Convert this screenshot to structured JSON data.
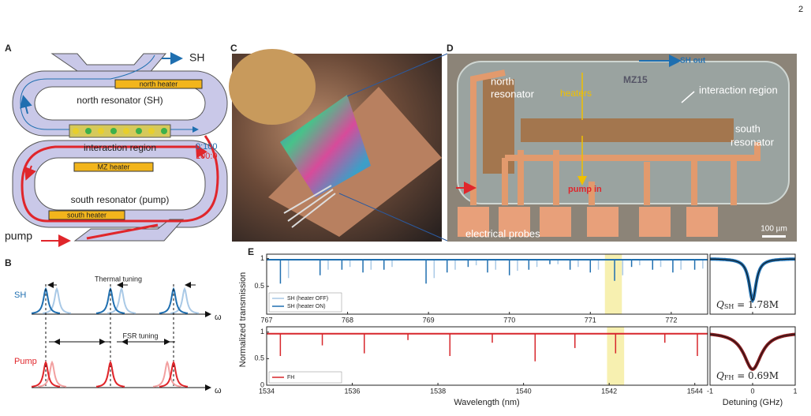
{
  "page_number": "2",
  "panels": {
    "A": {
      "label": "A",
      "sh": "SH",
      "north_heater": "north heater",
      "north_resonator": "north resonator (SH)",
      "interaction_region": "interaction region",
      "ratio_sh": "0:100",
      "ratio_pump": "100:0",
      "mz_heater": "MZ heater",
      "south_resonator": "south resonator (pump)",
      "south_heater": "south heater",
      "pump": "pump"
    },
    "B": {
      "label": "B",
      "sh": "SH",
      "thermal_tuning": "Thermal tuning",
      "pump": "Pump",
      "fsr_tuning": "FSR tuning",
      "omega_top": "ω",
      "omega_bottom": "ω"
    },
    "C": {
      "label": "C"
    },
    "D": {
      "label": "D",
      "sh_out": "SH out",
      "north_resonator_1": "north",
      "north_resonator_2": "resonator",
      "heaters": "heaters",
      "chip_id": "MZ15",
      "interaction_region": "interaction region",
      "south_resonator_1": "south",
      "south_resonator_2": "resonator",
      "pump_in": "pump in",
      "electrical_probes": "electrical probes",
      "scale_bar": "100 µm"
    },
    "E": {
      "label": "E",
      "ylabel": "Normalized transmission",
      "xlabel": "Wavelength (nm)",
      "xlabel_right": "Detuning (GHz)"
    }
  },
  "chart_data": [
    {
      "type": "spectrum",
      "xlim": [
        767,
        772.45
      ],
      "xticks": [
        767,
        768,
        769,
        770,
        771,
        772
      ],
      "ylim": [
        0,
        1.08
      ],
      "yticks": [
        0.5,
        1
      ],
      "highlight": [
        771.18,
        771.39
      ],
      "baseline": 0.98,
      "legend": "lower left",
      "series": [
        {
          "name": "SH (heater OFF)",
          "color": "#a9c9e6",
          "x": [
            767.27,
            767.76,
            768.03,
            768.29,
            768.55,
            769.07,
            769.33,
            769.59,
            769.83,
            770.1,
            770.34,
            770.6,
            770.85,
            771.1,
            771.4,
            771.61,
            771.87,
            772.12,
            772.39
          ],
          "values": [
            0.65,
            0.8,
            0.85,
            0.8,
            0.85,
            0.65,
            0.8,
            0.88,
            0.8,
            0.78,
            0.85,
            0.9,
            0.85,
            0.8,
            0.7,
            0.88,
            0.85,
            0.8,
            0.82
          ]
        },
        {
          "name": "SH (heater ON)",
          "color": "#1f6fb0",
          "x": [
            767.17,
            767.66,
            767.93,
            768.19,
            768.45,
            768.97,
            769.23,
            769.49,
            769.73,
            770.0,
            770.24,
            770.5,
            770.75,
            771.0,
            771.3,
            771.51,
            771.77,
            772.02,
            772.29
          ],
          "values": [
            0.55,
            0.7,
            0.8,
            0.75,
            0.8,
            0.55,
            0.75,
            0.85,
            0.75,
            0.7,
            0.8,
            0.9,
            0.8,
            0.75,
            0.6,
            0.85,
            0.8,
            0.75,
            0.8
          ]
        }
      ]
    },
    {
      "type": "spectrum",
      "xlim": [
        1534,
        1544.3
      ],
      "xticks": [
        1534,
        1536,
        1538,
        1540,
        1542,
        1544
      ],
      "ylim": [
        0,
        1.1
      ],
      "yticks": [
        0,
        0.5,
        1
      ],
      "highlight": [
        1541.95,
        1542.35
      ],
      "baseline": 0.97,
      "legend": "lower left",
      "series": [
        {
          "name": "FH",
          "color": "#d7262b",
          "x": [
            1534.32,
            1535.3,
            1536.28,
            1537.3,
            1538.28,
            1539.27,
            1540.27,
            1541.2,
            1542.15,
            1543.3,
            1544.06
          ],
          "values": [
            0.55,
            0.75,
            0.6,
            0.85,
            0.55,
            0.8,
            0.45,
            0.7,
            0.6,
            0.8,
            0.55
          ]
        }
      ]
    },
    {
      "type": "lorentzian",
      "xlim": [
        -1,
        1
      ],
      "xticks": [
        -1,
        0,
        1
      ],
      "ylim": [
        0,
        1.08
      ],
      "center": 0,
      "fwhm": 0.2,
      "min": 0.25,
      "color": "#1f6fb0",
      "q_symbol": "Q",
      "q_sub": "SH",
      "q_text": " = 1.78M"
    },
    {
      "type": "lorentzian",
      "xlim": [
        -1,
        1
      ],
      "xticks": [
        -1,
        0,
        1
      ],
      "ylim": [
        0,
        1.1
      ],
      "center": 0,
      "fwhm": 0.5,
      "min": 0.3,
      "color": "#8b1f22",
      "q_symbol": "Q",
      "q_sub": "FH",
      "q_text": " = 0.69M"
    }
  ]
}
